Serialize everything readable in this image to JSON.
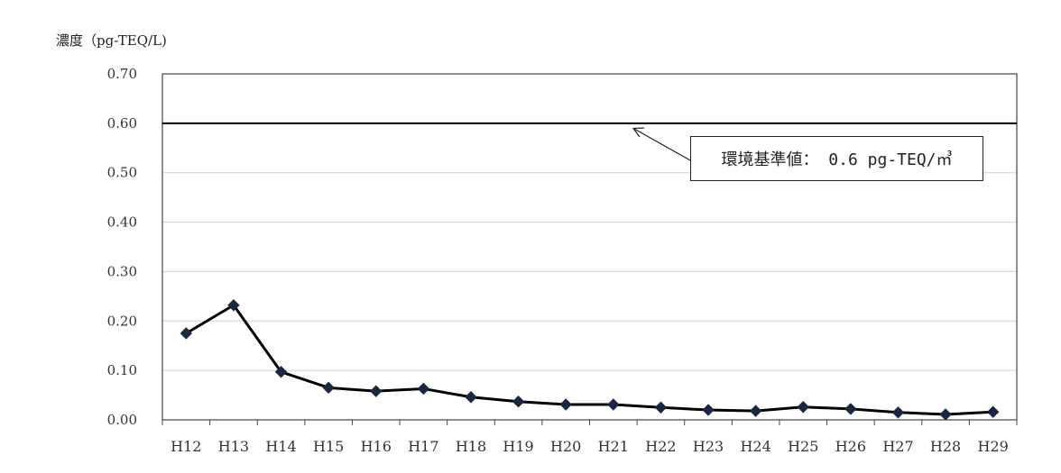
{
  "chart_data": {
    "type": "line",
    "ylabel": "濃度（pg-TEQ/L)",
    "categories": [
      "H12",
      "H13",
      "H14",
      "H15",
      "H16",
      "H17",
      "H18",
      "H19",
      "H20",
      "H21",
      "H22",
      "H23",
      "H24",
      "H25",
      "H26",
      "H27",
      "H28",
      "H29"
    ],
    "series": [
      {
        "values": [
          0.175,
          0.232,
          0.097,
          0.065,
          0.058,
          0.063,
          0.046,
          0.037,
          0.031,
          0.031,
          0.025,
          0.02,
          0.018,
          0.026,
          0.022,
          0.015,
          0.011,
          0.016
        ]
      }
    ],
    "ylim": [
      0,
      0.7
    ],
    "yticks": [
      "0.00",
      "0.10",
      "0.20",
      "0.30",
      "0.40",
      "0.50",
      "0.60",
      "0.70"
    ],
    "reference_line": {
      "value": 0.6,
      "label": "環境基準値： 0.6 pg-TEQ/㎥"
    },
    "grid": true,
    "colors": {
      "line": "#000000",
      "marker": "#1a2740",
      "grid": "#d0d0d0",
      "reference": "#000000"
    }
  }
}
